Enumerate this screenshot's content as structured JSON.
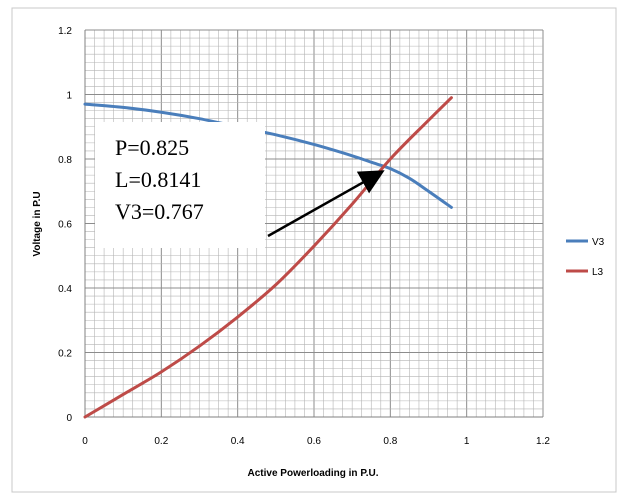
{
  "chart_data": {
    "type": "line",
    "title": "",
    "xlabel": "Active Powerloading in P.U.",
    "ylabel": "Voltage in P.U",
    "xlim": [
      0,
      1.2
    ],
    "ylim": [
      0,
      1.2
    ],
    "x_ticks": [
      "0",
      "0.2",
      "0.4",
      "0.6",
      "0.8",
      "1",
      "1.2"
    ],
    "y_ticks": [
      "0",
      "0.2",
      "0.4",
      "0.6",
      "0.8",
      "1",
      "1.2"
    ],
    "grid": true,
    "legend_position": "right",
    "series": [
      {
        "name": "V3",
        "color": "#4a7ebb",
        "x": [
          0,
          0.1,
          0.2,
          0.3,
          0.4,
          0.5,
          0.6,
          0.7,
          0.75,
          0.8,
          0.85,
          0.9,
          0.96
        ],
        "y": [
          0.97,
          0.96,
          0.945,
          0.925,
          0.9,
          0.875,
          0.845,
          0.81,
          0.79,
          0.77,
          0.74,
          0.7,
          0.65
        ]
      },
      {
        "name": "L3",
        "color": "#be4b48",
        "x": [
          0,
          0.1,
          0.2,
          0.3,
          0.4,
          0.5,
          0.6,
          0.7,
          0.8,
          0.9,
          0.96
        ],
        "y": [
          0,
          0.07,
          0.14,
          0.22,
          0.31,
          0.41,
          0.53,
          0.66,
          0.8,
          0.92,
          0.99
        ]
      }
    ],
    "annotation": {
      "lines": [
        "P=0.825",
        "L=0.8141",
        "V3=0.767"
      ],
      "arrow_target": [
        0.8,
        0.77
      ]
    }
  }
}
